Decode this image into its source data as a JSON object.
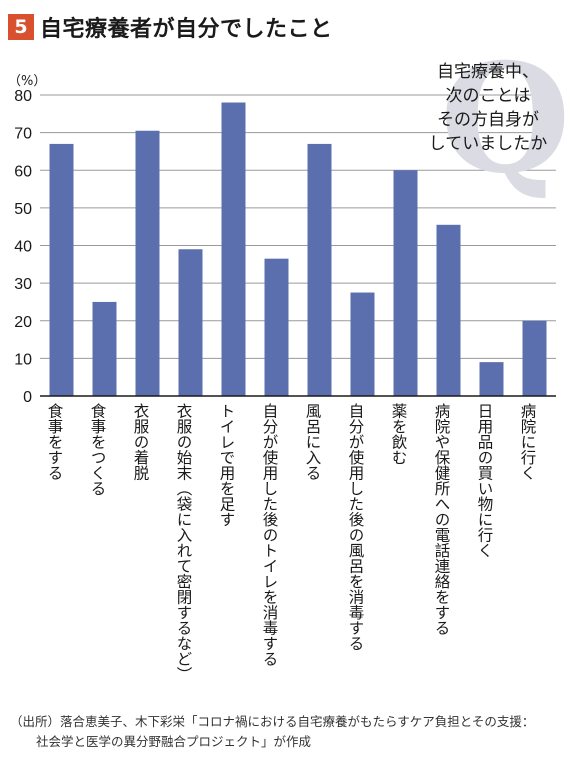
{
  "header": {
    "badge": "5",
    "title": "自宅療養者が自分でしたこと"
  },
  "chart_data": {
    "type": "bar",
    "ylabel": "（%）",
    "ylim": [
      0,
      80
    ],
    "yticks": [
      "0",
      "10",
      "20",
      "30",
      "40",
      "50",
      "60",
      "70",
      "80"
    ],
    "grid": true,
    "bar_color": "#5b6fae",
    "categories": [
      "食事をする",
      "食事をつくる",
      "衣服の着脱",
      "衣服の始末（袋に入れて密閉するなど）",
      "トイレで用を足す",
      "自分が使用した後のトイレを消毒する",
      "風呂に入る",
      "自分が使用した後の風呂を消毒する",
      "薬を飲む",
      "病院や保健所への電話連絡をする",
      "日用品の買い物に行く",
      "病院に行く"
    ],
    "values": [
      67,
      25,
      70.5,
      39,
      78,
      36.5,
      67,
      27.5,
      60,
      45.5,
      9,
      20
    ]
  },
  "question": {
    "letter": "Q",
    "lines": [
      "自宅療養中、",
      "次のことは",
      "その方自身が",
      "していましたか"
    ]
  },
  "source": {
    "line1": "（出所）落合恵美子、木下彩栄「コロナ禍における自宅療養がもたらすケア負担とその支援：",
    "line2": "社会学と医学の異分野融合プロジェクト」が作成"
  }
}
